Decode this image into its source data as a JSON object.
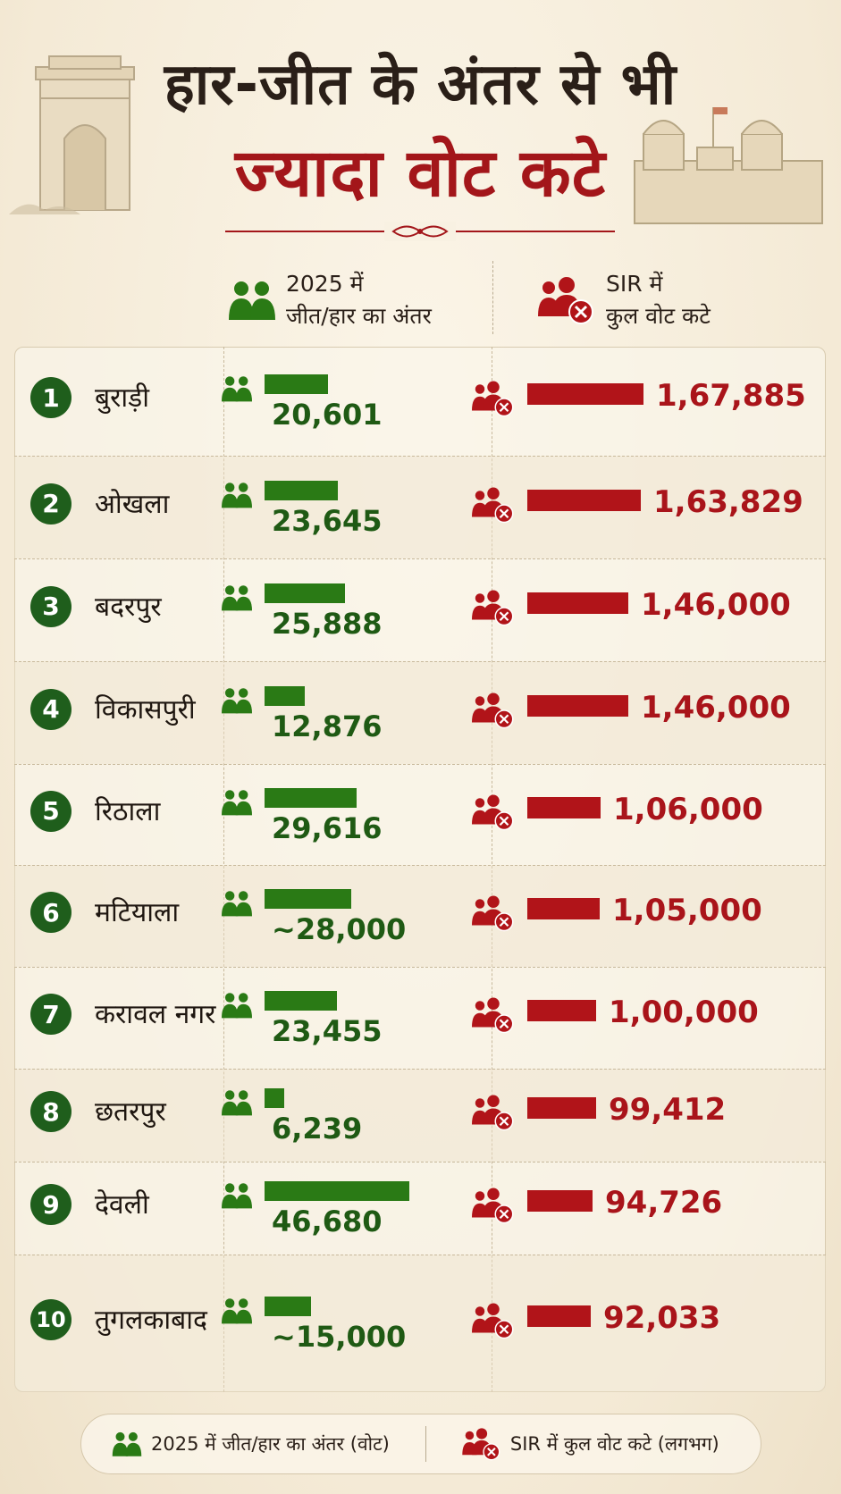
{
  "title": {
    "line1": "हार-जीत के अंतर से भी",
    "line2": "ज्यादा वोट कटे"
  },
  "columns": {
    "margin_line1": "2025 में",
    "margin_line2": "जीत/हार का अंतर",
    "cut_line1": "SIR में",
    "cut_line2": "कुल वोट कटे"
  },
  "legend": {
    "margin": "2025 में जीत/हार का अंतर (वोट)",
    "cut": "SIR में कुल वोट कटे (लगभग)"
  },
  "colors": {
    "green": "#2a7a15",
    "red": "#b11419",
    "badge": "#1f5e1c"
  },
  "icons": {
    "margin": "people-group-icon",
    "cut": "people-removed-icon"
  },
  "chart_data": {
    "type": "bar",
    "categories": [
      "बुराड़ी",
      "ओखला",
      "बदरपुर",
      "विकासपुरी",
      "रिठाला",
      "मटियाला",
      "करावल नगर",
      "छतरपुर",
      "देवली",
      "तुगलकाबाद"
    ],
    "ranks": [
      "1",
      "2",
      "3",
      "4",
      "5",
      "6",
      "7",
      "8",
      "9",
      "10"
    ],
    "series": [
      {
        "name": "2025 में जीत/हार का अंतर",
        "values": [
          20601,
          23645,
          25888,
          12876,
          29616,
          28000,
          23455,
          6239,
          46680,
          15000
        ],
        "labels": [
          "20,601",
          "23,645",
          "25,888",
          "12,876",
          "29,616",
          "~28,000",
          "23,455",
          "6,239",
          "46,680",
          "~15,000"
        ]
      },
      {
        "name": "SIR में कुल वोट कटे",
        "values": [
          167885,
          163829,
          146000,
          146000,
          106000,
          105000,
          100000,
          99412,
          94726,
          92033
        ],
        "labels": [
          "1,67,885",
          "1,63,829",
          "1,46,000",
          "1,46,000",
          "1,06,000",
          "1,05,000",
          "1,00,000",
          "99,412",
          "94,726",
          "92,033"
        ]
      }
    ]
  }
}
